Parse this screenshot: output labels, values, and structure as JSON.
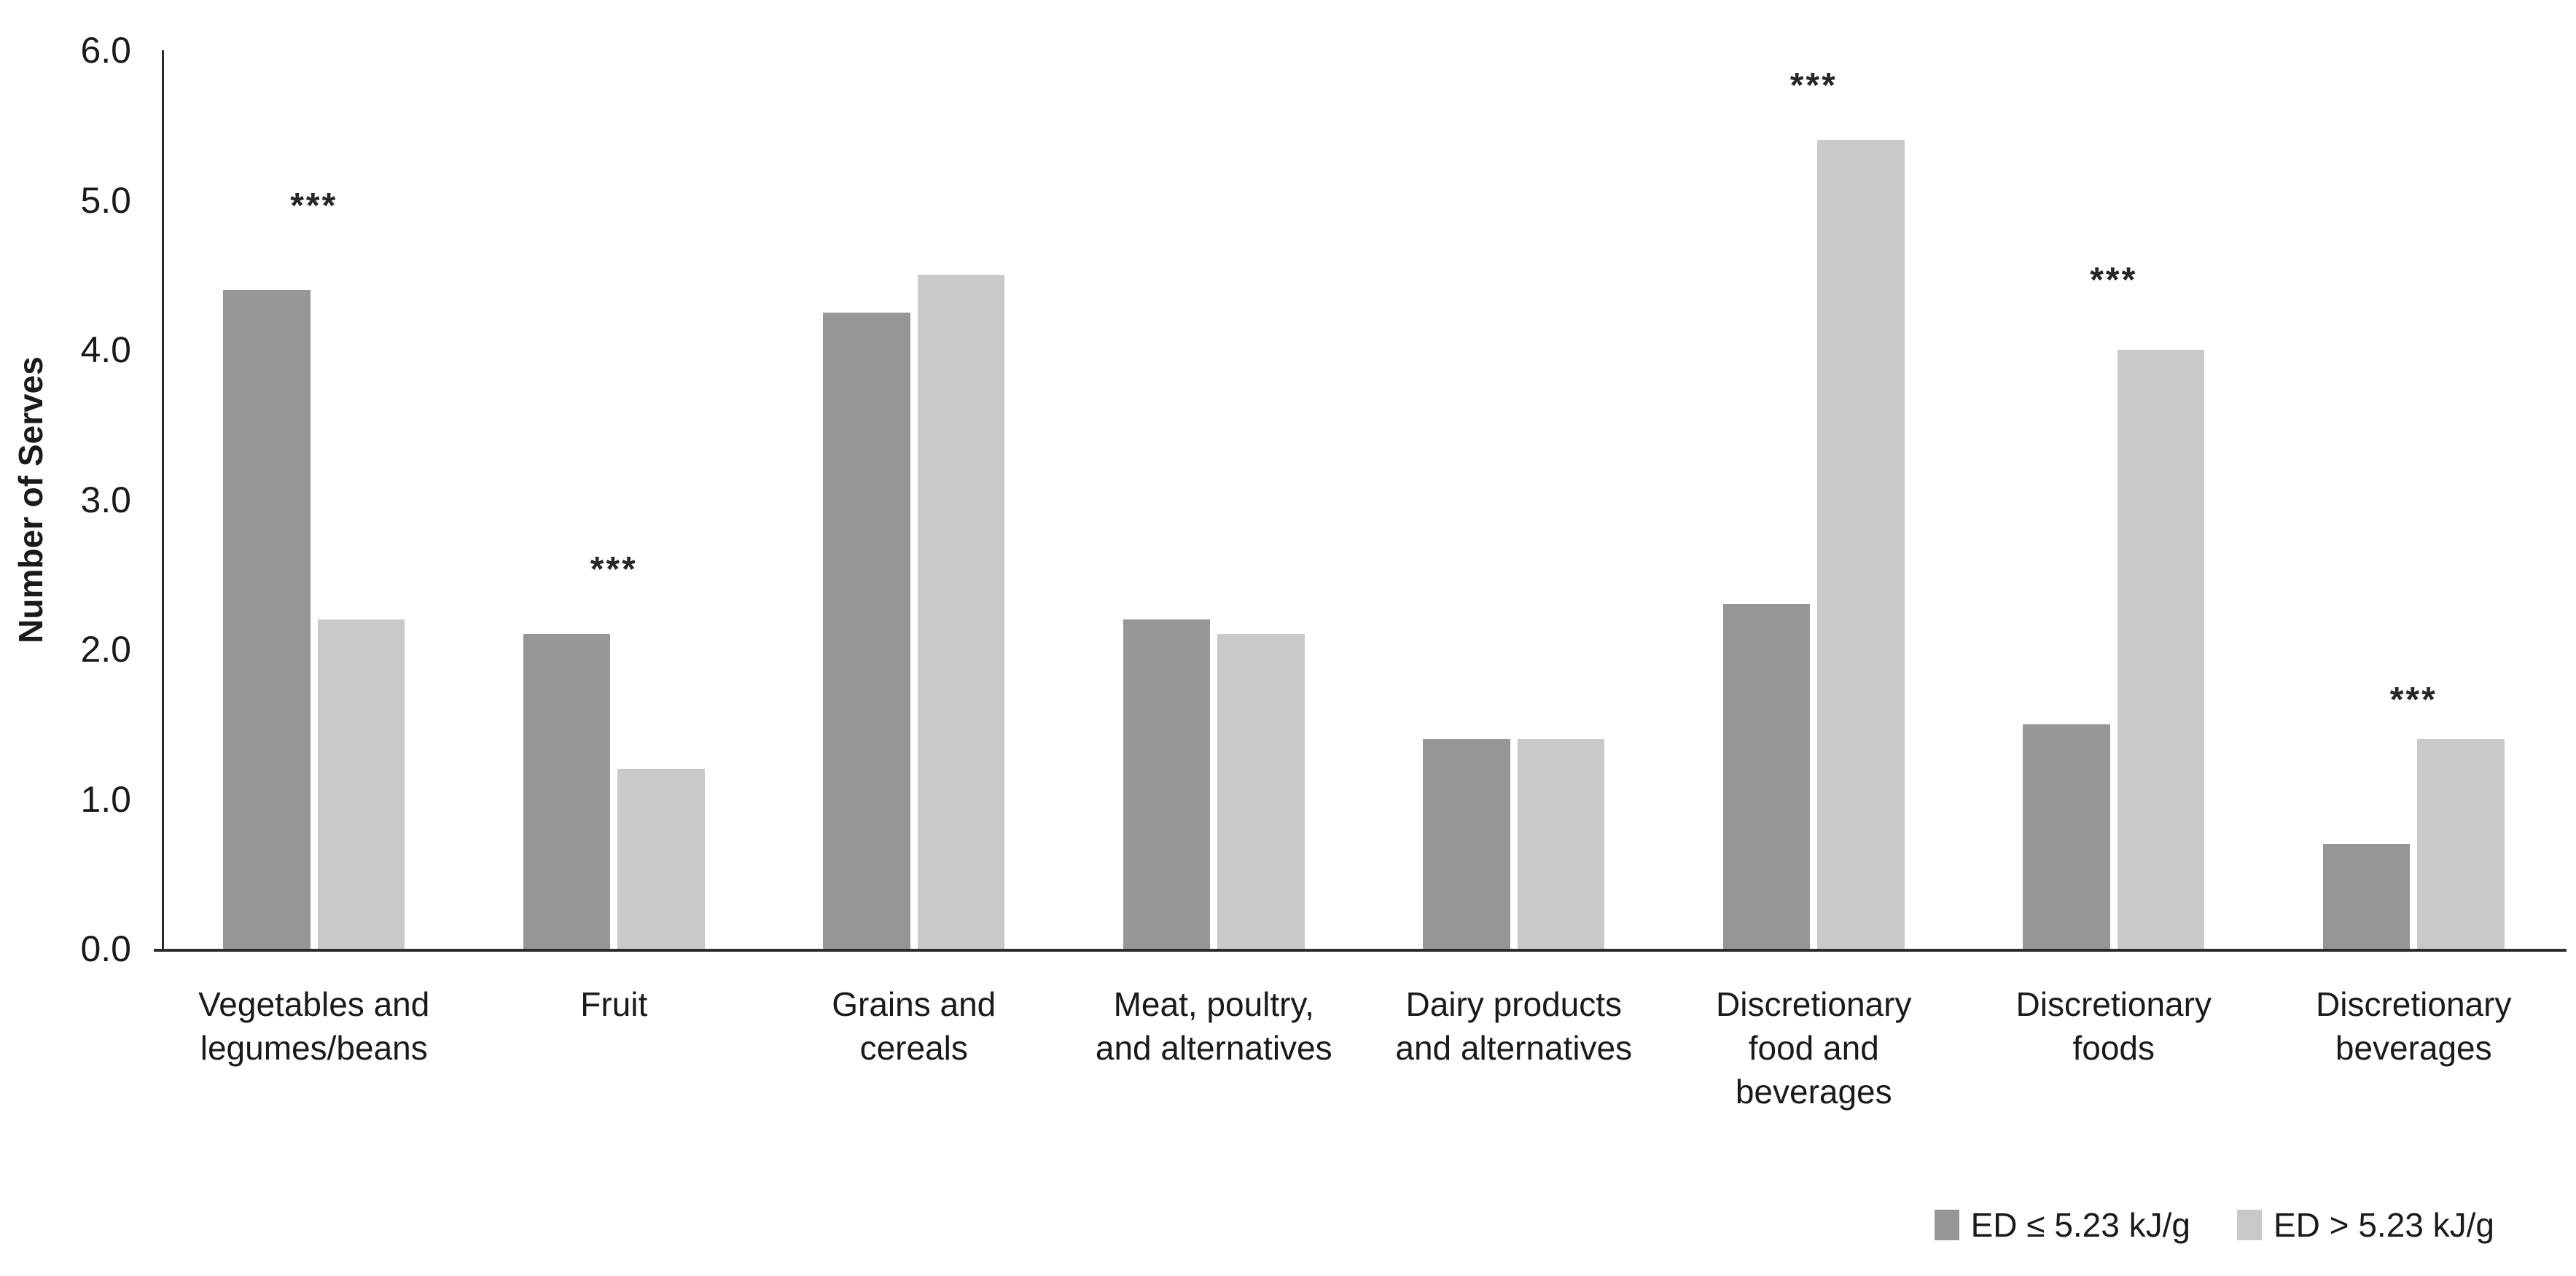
{
  "chart_data": {
    "type": "bar",
    "title": "",
    "ylabel": "Number of Serves",
    "xlabel": "",
    "ylim": [
      0,
      6
    ],
    "yticks": [
      0,
      1,
      2,
      3,
      4,
      5,
      6
    ],
    "ytick_labels": [
      "0.0",
      "1.0",
      "2.0",
      "3.0",
      "4.0",
      "5.0",
      "6.0"
    ],
    "grid": false,
    "legend_position": "bottom-right",
    "categories": [
      "Vegetables and\nlegumes/beans",
      "Fruit",
      "Grains and\ncereals",
      "Meat, poultry,\nand alternatives",
      "Dairy products\nand alternatives",
      "Discretionary\nfood and\nbeverages",
      "Discretionary\nfoods",
      "Discretionary\nbeverages"
    ],
    "series": [
      {
        "name": "ED ≤ 5.23 kJ/g",
        "color": "#969696",
        "values": [
          4.4,
          2.1,
          4.25,
          2.2,
          1.4,
          2.3,
          1.5,
          0.7
        ]
      },
      {
        "name": "ED > 5.23 kJ/g",
        "color": "#C9C9C9",
        "values": [
          2.2,
          1.2,
          4.5,
          2.1,
          1.4,
          5.4,
          4.0,
          1.4
        ]
      }
    ],
    "significance_markers": [
      {
        "category_index": 0,
        "label": "***",
        "y_value": 5.0
      },
      {
        "category_index": 1,
        "label": "***",
        "y_value": 2.57
      },
      {
        "category_index": 5,
        "label": "***",
        "y_value": 5.8
      },
      {
        "category_index": 6,
        "label": "***",
        "y_value": 4.5
      },
      {
        "category_index": 7,
        "label": "***",
        "y_value": 1.7
      }
    ]
  }
}
